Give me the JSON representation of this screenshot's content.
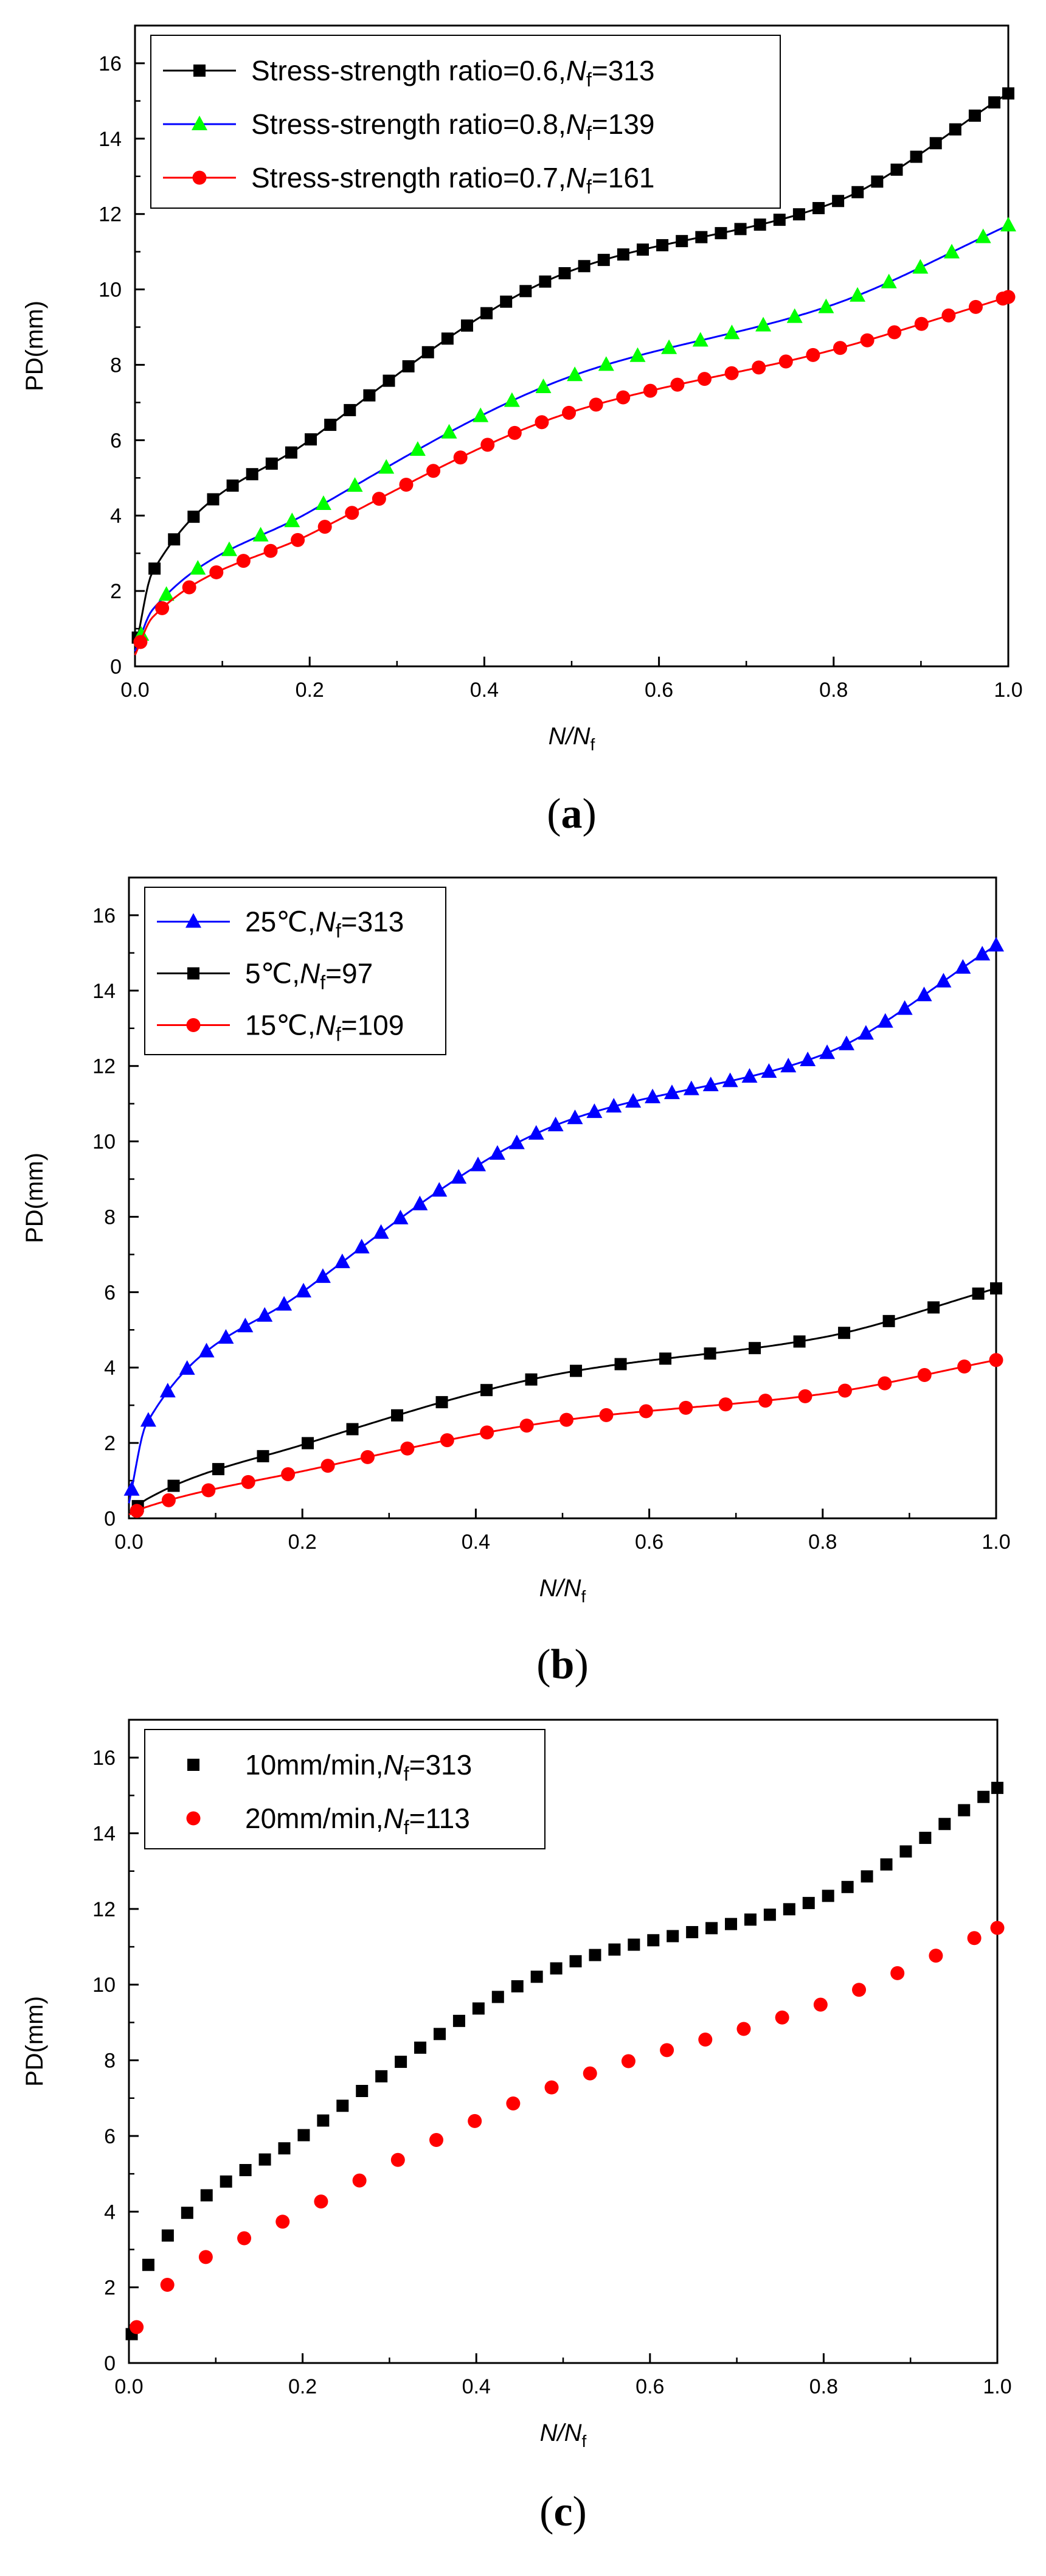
{
  "chart_data": [
    {
      "type": "line",
      "panel": "a",
      "xlabel": "N/N",
      "xlabel_sub": "f",
      "ylabel": "PD(mm)",
      "xlim": [
        0,
        1
      ],
      "ylim": [
        0,
        17
      ],
      "xticks": [
        "0.0",
        "0.2",
        "0.4",
        "0.6",
        "0.8",
        "1.0"
      ],
      "yticks": [
        "0",
        "2",
        "4",
        "6",
        "8",
        "10",
        "12",
        "14",
        "16"
      ],
      "legend_position": "top-left",
      "series": [
        {
          "name": "Stress-strength ratio=0.6,",
          "nf_label": "=313",
          "color": "#000000",
          "marker": "square",
          "line": "#000000",
          "n": 313,
          "curve": [
            0.4,
            2.5,
            6.0,
            10.5,
            12.3,
            15.2
          ],
          "marker_stride": 7
        },
        {
          "name": "Stress-strength ratio=0.8,",
          "nf_label": "=139",
          "color": "#00ff00",
          "marker": "triangle",
          "line": "#0000ff",
          "n": 139,
          "curve": [
            0.4,
            1.5,
            4.1,
            7.7,
            9.6,
            11.7
          ],
          "marker_stride": 5
        },
        {
          "name": "Stress-strength ratio=0.7,",
          "nf_label": "=161",
          "color": "#ff0000",
          "marker": "circle",
          "line": "#ff0000",
          "n": 161,
          "curve": [
            0.3,
            1.3,
            3.5,
            6.75,
            8.4,
            9.8
          ],
          "marker_stride": 5
        }
      ]
    },
    {
      "type": "line",
      "panel": "b",
      "xlabel": "N/N",
      "xlabel_sub": "f",
      "ylabel": "PD(mm)",
      "xlim": [
        0,
        1
      ],
      "ylim": [
        0,
        17
      ],
      "xticks": [
        "0.0",
        "0.2",
        "0.4",
        "0.6",
        "0.8",
        "1.0"
      ],
      "yticks": [
        "0",
        "2",
        "4",
        "6",
        "8",
        "10",
        "12",
        "14",
        "16"
      ],
      "legend_position": "top-left",
      "series": [
        {
          "name": "25℃,",
          "nf_label": "=313",
          "color": "#0000ff",
          "marker": "triangle",
          "line": "#0000ff",
          "n": 313,
          "curve": [
            0.4,
            2.5,
            6.0,
            10.5,
            12.3,
            15.2
          ],
          "marker_stride": 7
        },
        {
          "name": "5℃,",
          "nf_label": "=97",
          "color": "#000000",
          "marker": "square",
          "line": "#000000",
          "n": 97,
          "curve": [
            0.1,
            0.5,
            1.95,
            3.85,
            4.8,
            6.1
          ],
          "marker_stride": 5
        },
        {
          "name": "15℃,",
          "nf_label": "=109",
          "color": "#ff0000",
          "marker": "circle",
          "line": "#ff0000",
          "n": 109,
          "curve": [
            0.1,
            0.3,
            1.25,
            2.6,
            3.3,
            4.2
          ],
          "marker_stride": 5
        }
      ]
    },
    {
      "type": "scatter",
      "panel": "c",
      "xlabel": "N/N",
      "xlabel_sub": "f",
      "ylabel": "PD(mm)",
      "xlim": [
        0,
        1
      ],
      "ylim": [
        0,
        17
      ],
      "xticks": [
        "0.0",
        "0.2",
        "0.4",
        "0.6",
        "0.8",
        "1.0"
      ],
      "yticks": [
        "0",
        "2",
        "4",
        "6",
        "8",
        "10",
        "12",
        "14",
        "16"
      ],
      "legend_position": "top-left",
      "series": [
        {
          "name": "10mm/min,",
          "nf_label": "=313",
          "color": "#000000",
          "marker": "square",
          "line": null,
          "n": 313,
          "curve": [
            0.4,
            2.5,
            6.0,
            10.5,
            12.3,
            15.2
          ],
          "marker_stride": 7
        },
        {
          "name": "20mm/min,",
          "nf_label": "=113",
          "color": "#ff0000",
          "marker": "circle",
          "line": null,
          "n": 113,
          "curve": [
            0.4,
            1.5,
            4.0,
            7.4,
            9.5,
            11.5
          ],
          "marker_stride": 5
        }
      ]
    }
  ],
  "panel_labels": [
    "(a)",
    "(b)",
    "(c)"
  ],
  "nf_symbol": "N",
  "nf_sub": "f"
}
